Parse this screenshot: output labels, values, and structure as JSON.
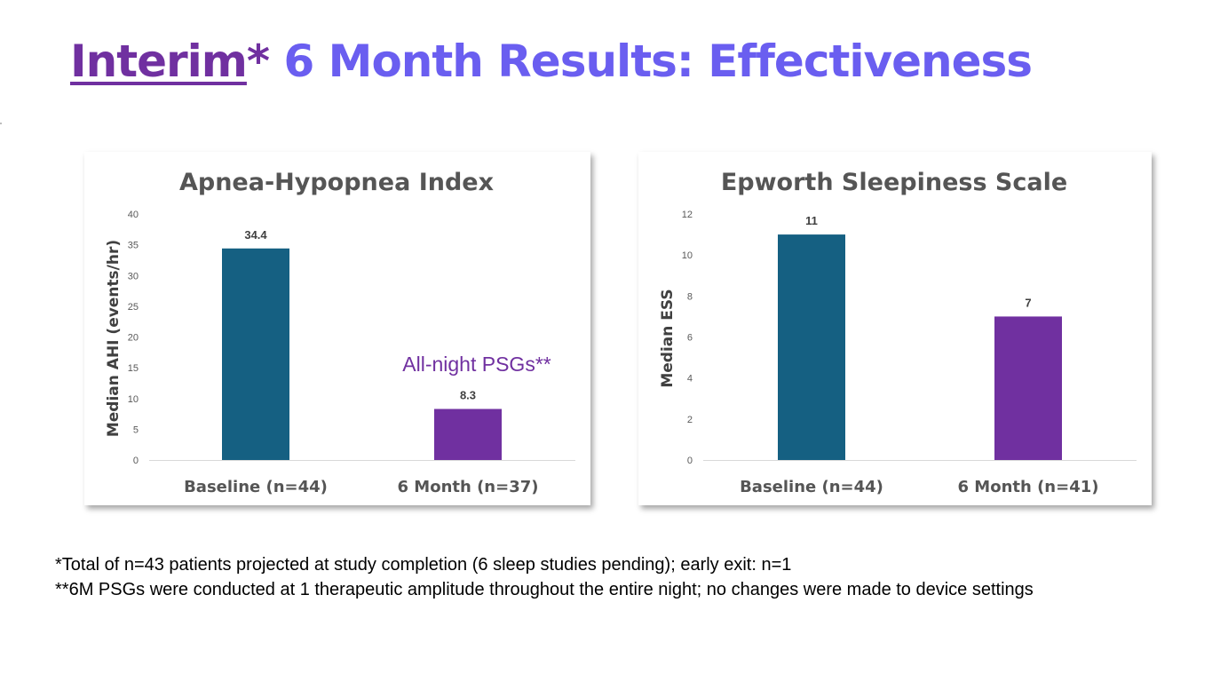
{
  "title": {
    "part1": "Interim",
    "part2": "*",
    "part3": " 6 Month Results: Effectiveness"
  },
  "colors": {
    "title_purple": "#7030a0",
    "title_blue": "#6a5ef0",
    "baseline_bar": "#156082",
    "sixmonth_bar": "#7030a0"
  },
  "chart_data": [
    {
      "type": "bar",
      "title": "Apnea-Hypopnea Index",
      "xlabel": "",
      "ylabel": "Median AHI (events/hr)",
      "categories": [
        "Baseline (n=44)",
        "6 Month  (n=37)"
      ],
      "values": [
        34.4,
        8.3
      ],
      "data_labels": [
        "34.4",
        "8.3"
      ],
      "ylim": [
        0,
        40
      ],
      "yticks": [
        0,
        5,
        10,
        15,
        20,
        25,
        30,
        35,
        40
      ],
      "grid": false,
      "annotation": "All-night PSGs**"
    },
    {
      "type": "bar",
      "title": "Epworth Sleepiness Scale",
      "xlabel": "",
      "ylabel": "Median ESS",
      "categories": [
        "Baseline (n=44)",
        "6 Month (n=41)"
      ],
      "values": [
        11,
        7
      ],
      "data_labels": [
        "11",
        "7"
      ],
      "ylim": [
        0,
        12
      ],
      "yticks": [
        0,
        2,
        4,
        6,
        8,
        10,
        12
      ],
      "grid": false
    }
  ],
  "footnotes": [
    "*Total of n=43 patients projected at study completion (6 sleep studies pending); early exit: n=1",
    "**6M PSGs were conducted at 1 therapeutic amplitude throughout the entire night; no changes were made to device settings"
  ]
}
